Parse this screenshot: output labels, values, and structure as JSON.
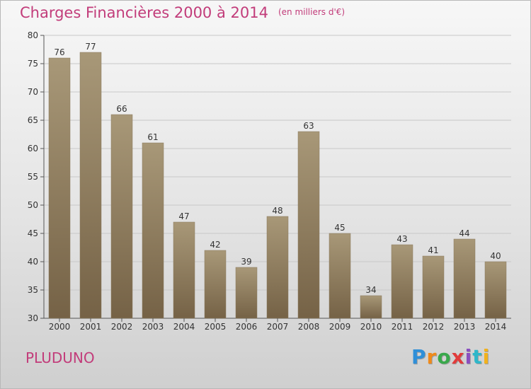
{
  "chart_data": {
    "type": "bar",
    "title": "Charges Financières 2000 à 2014",
    "subtitle": "(en milliers d'€)",
    "categories": [
      "2000",
      "2001",
      "2002",
      "2003",
      "2004",
      "2005",
      "2006",
      "2007",
      "2008",
      "2009",
      "2010",
      "2011",
      "2012",
      "2013",
      "2014"
    ],
    "values": [
      76,
      77,
      66,
      61,
      47,
      42,
      39,
      48,
      63,
      45,
      34,
      43,
      41,
      44,
      40
    ],
    "ylim": [
      30,
      80
    ],
    "yticks": [
      30,
      35,
      40,
      45,
      50,
      55,
      60,
      65,
      70,
      75,
      80
    ],
    "grid": true,
    "bar_color_top": "#a89878",
    "bar_color_bottom": "#756246"
  },
  "footer": {
    "commune": "PLUDUNO",
    "logo": "Proxiti"
  },
  "colors": {
    "title": "#c23c7a"
  }
}
